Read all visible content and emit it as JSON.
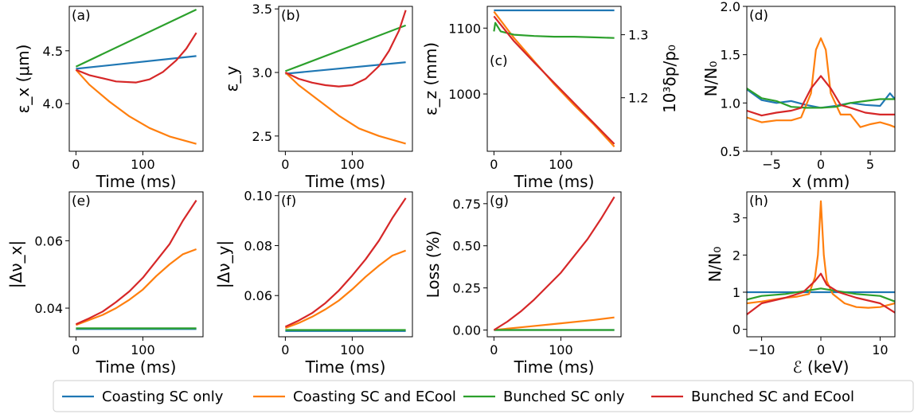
{
  "colors": {
    "coasting_sc": "#1f77b4",
    "coasting_ecool": "#ff7f0e",
    "bunched_sc": "#2ca02c",
    "bunched_ecool": "#d62728"
  },
  "legend": {
    "placement": "bottom",
    "entries": [
      "Coasting SC only",
      "Coasting SC and ECool",
      "Bunched SC only",
      "Bunched SC and ECool"
    ]
  },
  "chart_data": [
    {
      "id": "a",
      "panel_label": "(a)",
      "type": "line",
      "xlabel": "Time (ms)",
      "ylabel": "ε_x (μm)",
      "xlim": [
        -10,
        190
      ],
      "ylim": [
        3.55,
        4.92
      ],
      "xticks": [
        0,
        100
      ],
      "yticks": [
        4.0,
        4.5
      ],
      "ytick_labels": [
        "4.0",
        "4.5"
      ],
      "series": [
        {
          "name": "Coasting SC only",
          "x": [
            0,
            180
          ],
          "y": [
            4.33,
            4.45
          ]
        },
        {
          "name": "Coasting SC and ECool",
          "x": [
            0,
            20,
            50,
            80,
            110,
            140,
            180
          ],
          "y": [
            4.32,
            4.18,
            4.02,
            3.88,
            3.77,
            3.69,
            3.62
          ]
        },
        {
          "name": "Bunched SC only",
          "x": [
            0,
            180
          ],
          "y": [
            4.35,
            4.89
          ]
        },
        {
          "name": "Bunched SC and ECool",
          "x": [
            0,
            20,
            40,
            60,
            90,
            110,
            130,
            150,
            165,
            180
          ],
          "y": [
            4.32,
            4.27,
            4.24,
            4.21,
            4.2,
            4.23,
            4.3,
            4.41,
            4.52,
            4.67
          ]
        }
      ]
    },
    {
      "id": "b",
      "panel_label": "(b)",
      "type": "line",
      "xlabel": "Time (ms)",
      "ylabel": "ε_y",
      "xlim": [
        -10,
        190
      ],
      "ylim": [
        2.38,
        3.52
      ],
      "xticks": [
        0,
        100
      ],
      "yticks": [
        2.5,
        3.0,
        3.5
      ],
      "ytick_labels": [
        "2.5",
        "3.0",
        "3.5"
      ],
      "series": [
        {
          "name": "Coasting SC only",
          "x": [
            0,
            180
          ],
          "y": [
            2.99,
            3.08
          ]
        },
        {
          "name": "Coasting SC and ECool",
          "x": [
            0,
            20,
            50,
            80,
            110,
            140,
            180
          ],
          "y": [
            3.0,
            2.9,
            2.78,
            2.66,
            2.56,
            2.5,
            2.44
          ]
        },
        {
          "name": "Bunched SC only",
          "x": [
            0,
            180
          ],
          "y": [
            3.01,
            3.37
          ]
        },
        {
          "name": "Bunched SC and ECool",
          "x": [
            0,
            20,
            40,
            60,
            80,
            100,
            120,
            140,
            155,
            170,
            180
          ],
          "y": [
            3.0,
            2.95,
            2.92,
            2.9,
            2.89,
            2.9,
            2.95,
            3.05,
            3.17,
            3.33,
            3.49
          ]
        }
      ]
    },
    {
      "id": "c",
      "panel_label": "(c)",
      "type": "line",
      "xlabel": "Time (ms)",
      "ylabel": "ε_z (mm)",
      "ylabel_right": "10³δp/p₀",
      "xlim": [
        -10,
        190
      ],
      "ylim": [
        913,
        1133
      ],
      "xticks": [
        0,
        100
      ],
      "yticks": [
        1000,
        1100
      ],
      "ytick_labels": [
        "1000",
        "1100"
      ],
      "ylim_right": [
        1.115,
        1.345
      ],
      "yticks_right": [
        1.2,
        1.3
      ],
      "ytick_labels_right": [
        "1.2",
        "1.3"
      ],
      "series": [
        {
          "name": "Coasting SC only",
          "x": [
            0,
            180
          ],
          "y": [
            1127,
            1127
          ]
        },
        {
          "name": "Coasting SC and ECool",
          "x": [
            0,
            30,
            60,
            90,
            120,
            150,
            180
          ],
          "y": [
            1125,
            1085,
            1050,
            1015,
            983,
            953,
            920
          ]
        },
        {
          "name": "Bunched SC only",
          "x": [
            0,
            2,
            10,
            30,
            60,
            90,
            120,
            150,
            180
          ],
          "y": [
            1095,
            1108,
            1095,
            1090,
            1088,
            1087,
            1087,
            1086,
            1085
          ]
        },
        {
          "name": "Bunched SC and ECool",
          "x": [
            0,
            30,
            60,
            90,
            120,
            150,
            180
          ],
          "y": [
            1118,
            1080,
            1048,
            1017,
            986,
            955,
            924
          ]
        }
      ]
    },
    {
      "id": "d",
      "panel_label": "(d)",
      "type": "line",
      "xlabel": "x (mm)",
      "ylabel": "N/N₀",
      "xlim": [
        -7.5,
        7.5
      ],
      "ylim": [
        0.5,
        2.0
      ],
      "xticks": [
        -5,
        0,
        5
      ],
      "yticks": [
        0.5,
        1.0,
        1.5,
        2.0
      ],
      "ytick_labels": [
        "0.5",
        "1.0",
        "1.5",
        "2.0"
      ],
      "series": [
        {
          "name": "Coasting SC only",
          "x": [
            -7.5,
            -6,
            -4.5,
            -3,
            -1.5,
            0,
            1.5,
            3,
            4.5,
            6,
            7,
            7.5
          ],
          "y": [
            1.14,
            1.03,
            1.0,
            1.02,
            0.98,
            0.95,
            0.97,
            1.0,
            0.98,
            0.97,
            1.1,
            1.04
          ]
        },
        {
          "name": "Coasting SC and ECool",
          "x": [
            -7.5,
            -6,
            -4.5,
            -3,
            -2,
            -1,
            -0.5,
            0,
            0.5,
            1,
            2,
            3,
            4,
            5,
            6,
            7,
            7.5
          ],
          "y": [
            0.85,
            0.8,
            0.82,
            0.82,
            0.85,
            1.1,
            1.55,
            1.67,
            1.55,
            1.1,
            0.88,
            0.88,
            0.75,
            0.78,
            0.8,
            0.77,
            0.75
          ]
        },
        {
          "name": "Bunched SC only",
          "x": [
            -7.5,
            -6,
            -4.5,
            -3,
            -1.5,
            0,
            1.5,
            3,
            4.5,
            6,
            7.5
          ],
          "y": [
            1.15,
            1.05,
            1.02,
            0.96,
            0.95,
            0.95,
            0.96,
            1.0,
            1.02,
            1.04,
            1.04
          ]
        },
        {
          "name": "Bunched SC and ECool",
          "x": [
            -7.5,
            -6,
            -4.5,
            -3,
            -2,
            -1,
            0,
            1,
            2,
            3,
            4.5,
            6,
            7.5
          ],
          "y": [
            0.92,
            0.87,
            0.9,
            0.92,
            0.95,
            1.15,
            1.28,
            1.15,
            0.98,
            0.95,
            0.9,
            0.88,
            0.88
          ]
        }
      ]
    },
    {
      "id": "e",
      "panel_label": "(e)",
      "type": "line",
      "xlabel": "Time (ms)",
      "ylabel": "|Δν_x|",
      "xlim": [
        -10,
        190
      ],
      "ylim": [
        0.0315,
        0.0745
      ],
      "xticks": [
        0,
        100
      ],
      "yticks": [
        0.04,
        0.06
      ],
      "ytick_labels": [
        "0.04",
        "0.06"
      ],
      "series": [
        {
          "name": "Coasting SC only",
          "x": [
            0,
            180
          ],
          "y": [
            0.0338,
            0.0338
          ]
        },
        {
          "name": "Coasting SC and ECool",
          "x": [
            0,
            20,
            40,
            60,
            80,
            100,
            120,
            140,
            160,
            180
          ],
          "y": [
            0.035,
            0.0365,
            0.038,
            0.04,
            0.0425,
            0.0455,
            0.0495,
            0.053,
            0.056,
            0.0575
          ]
        },
        {
          "name": "Bunched SC only",
          "x": [
            0,
            180
          ],
          "y": [
            0.034,
            0.034
          ]
        },
        {
          "name": "Bunched SC and ECool",
          "x": [
            0,
            20,
            40,
            60,
            80,
            100,
            120,
            140,
            160,
            180
          ],
          "y": [
            0.0352,
            0.037,
            0.039,
            0.0418,
            0.045,
            0.049,
            0.054,
            0.059,
            0.066,
            0.072
          ]
        }
      ]
    },
    {
      "id": "f",
      "panel_label": "(f)",
      "type": "line",
      "xlabel": "Time (ms)",
      "ylabel": "|Δν_y|",
      "xlim": [
        -10,
        190
      ],
      "ylim": [
        0.0435,
        0.1015
      ],
      "xticks": [
        0,
        100
      ],
      "yticks": [
        0.06,
        0.08,
        0.1
      ],
      "ytick_labels": [
        "0.06",
        "0.08",
        "0.10"
      ],
      "series": [
        {
          "name": "Coasting SC only",
          "x": [
            0,
            180
          ],
          "y": [
            0.0458,
            0.0458
          ]
        },
        {
          "name": "Coasting SC and ECool",
          "x": [
            0,
            20,
            40,
            60,
            80,
            100,
            120,
            140,
            160,
            180
          ],
          "y": [
            0.047,
            0.049,
            0.0515,
            0.0545,
            0.058,
            0.0625,
            0.0675,
            0.072,
            0.076,
            0.078
          ]
        },
        {
          "name": "Bunched SC only",
          "x": [
            0,
            180
          ],
          "y": [
            0.0462,
            0.0462
          ]
        },
        {
          "name": "Bunched SC and ECool",
          "x": [
            0,
            20,
            40,
            60,
            80,
            100,
            120,
            140,
            160,
            180
          ],
          "y": [
            0.0475,
            0.05,
            0.053,
            0.057,
            0.062,
            0.068,
            0.0745,
            0.082,
            0.091,
            0.099
          ]
        }
      ]
    },
    {
      "id": "g",
      "panel_label": "(g)",
      "type": "line",
      "xlabel": "Time (ms)",
      "ylabel": "Loss (%)",
      "xlim": [
        -10,
        190
      ],
      "ylim": [
        -0.04,
        0.82
      ],
      "xticks": [
        0,
        100
      ],
      "yticks": [
        0.0,
        0.25,
        0.5,
        0.75
      ],
      "ytick_labels": [
        "0.00",
        "0.25",
        "0.50",
        "0.75"
      ],
      "series": [
        {
          "name": "Coasting SC only",
          "x": [
            0,
            180
          ],
          "y": [
            0,
            0
          ]
        },
        {
          "name": "Coasting SC and ECool",
          "x": [
            0,
            50,
            100,
            150,
            180
          ],
          "y": [
            0,
            0.02,
            0.04,
            0.06,
            0.075
          ]
        },
        {
          "name": "Bunched SC only",
          "x": [
            0,
            180
          ],
          "y": [
            0,
            0
          ]
        },
        {
          "name": "Bunched SC and ECool",
          "x": [
            0,
            20,
            40,
            60,
            80,
            100,
            120,
            140,
            160,
            180
          ],
          "y": [
            0,
            0.05,
            0.11,
            0.18,
            0.26,
            0.34,
            0.44,
            0.54,
            0.66,
            0.79
          ]
        }
      ]
    },
    {
      "id": "h",
      "panel_label": "(h)",
      "type": "line",
      "xlabel": "ℰ (keV)",
      "ylabel": "N/N₀",
      "xlim": [
        -12.5,
        12.5
      ],
      "ylim": [
        -0.2,
        3.7
      ],
      "xticks": [
        -10,
        0,
        10
      ],
      "yticks": [
        0,
        1,
        2,
        3
      ],
      "ytick_labels": [
        "0",
        "1",
        "2",
        "3"
      ],
      "series": [
        {
          "name": "Coasting SC only",
          "x": [
            -12.5,
            12.5
          ],
          "y": [
            1.0,
            1.0
          ]
        },
        {
          "name": "Coasting SC and ECool",
          "x": [
            -12.5,
            -10,
            -8,
            -6,
            -4,
            -2,
            -1,
            -0.5,
            0,
            0.5,
            1,
            2,
            4,
            6,
            8,
            10,
            12.5
          ],
          "y": [
            0.7,
            0.75,
            0.8,
            0.85,
            0.88,
            0.95,
            1.4,
            2.0,
            3.45,
            2.0,
            1.3,
            0.95,
            0.7,
            0.6,
            0.58,
            0.6,
            0.7
          ]
        },
        {
          "name": "Bunched SC only",
          "x": [
            -12.5,
            -10,
            -6,
            -2,
            0,
            2,
            6,
            10,
            12.5
          ],
          "y": [
            0.8,
            0.9,
            0.95,
            1.05,
            1.1,
            1.05,
            0.95,
            0.9,
            0.75
          ]
        },
        {
          "name": "Bunched SC and ECool",
          "x": [
            -12.5,
            -10,
            -6,
            -3,
            -1,
            0,
            1,
            3,
            6,
            10,
            12.5
          ],
          "y": [
            0.4,
            0.7,
            0.85,
            1.0,
            1.3,
            1.5,
            1.2,
            1.0,
            0.85,
            0.7,
            0.45
          ]
        }
      ]
    }
  ]
}
